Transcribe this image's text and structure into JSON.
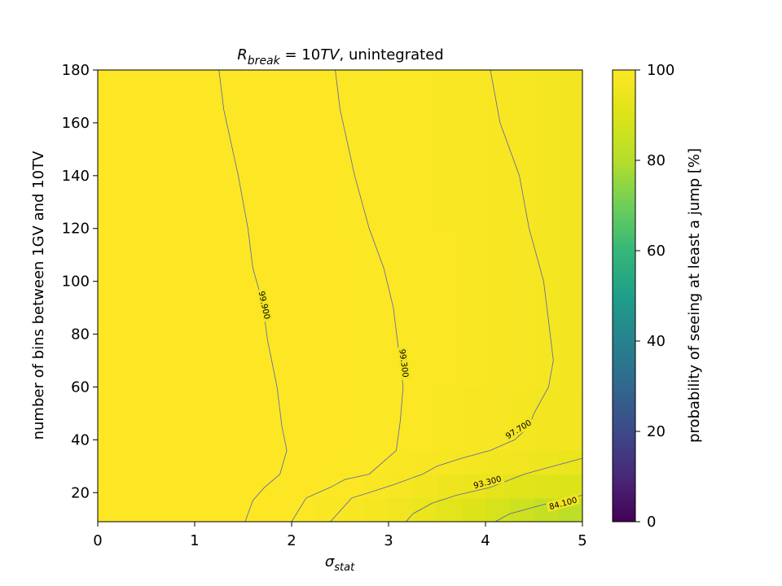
{
  "chart_data": {
    "type": "heatmap",
    "title_main": "R",
    "title_sub": "break",
    "title_eq": " = 10",
    "title_tv": "TV",
    "title_rest": ", unintegrated",
    "xlabel_main": "σ",
    "xlabel_sub": "stat",
    "ylabel": "number of bins between 1GV and 10TV",
    "colorbar_label": "probability of seeing at least a jump [%]",
    "xlim": [
      0,
      5
    ],
    "ylim": [
      9,
      180
    ],
    "clim": [
      0,
      100
    ],
    "colormap": "viridis",
    "x_ticks": [
      0,
      1,
      2,
      3,
      4,
      5
    ],
    "x_tick_labels": [
      "0",
      "1",
      "2",
      "3",
      "4",
      "5"
    ],
    "y_ticks": [
      20,
      40,
      60,
      80,
      100,
      120,
      140,
      160,
      180
    ],
    "y_tick_labels": [
      "20",
      "40",
      "60",
      "80",
      "100",
      "120",
      "140",
      "160",
      "180"
    ],
    "colorbar_ticks": [
      0,
      20,
      40,
      60,
      80,
      100
    ],
    "colorbar_tick_labels": [
      "0",
      "20",
      "40",
      "60",
      "80",
      "100"
    ],
    "grid_x_edges": [
      0,
      0.25,
      0.5,
      0.75,
      1.0,
      1.25,
      1.5,
      1.75,
      2.0,
      2.25,
      2.5,
      2.75,
      3.0,
      3.25,
      3.5,
      3.75,
      4.0,
      4.25,
      4.5,
      4.75,
      5.0
    ],
    "grid_y_edges": [
      9,
      18,
      27,
      36,
      60,
      90,
      120,
      150,
      180
    ],
    "cells": [
      [
        100,
        100,
        100,
        100,
        100,
        100,
        100,
        99.9,
        99.7,
        99.2,
        98.5,
        97.5,
        96,
        94,
        92,
        90,
        88,
        86,
        84,
        82
      ],
      [
        100,
        100,
        100,
        100,
        100,
        100,
        100,
        100,
        99.9,
        99.7,
        99.4,
        98.8,
        98,
        97,
        95.5,
        94,
        92.5,
        91.5,
        90.5,
        89.5
      ],
      [
        100,
        100,
        100,
        100,
        100,
        100,
        100,
        100,
        100,
        99.9,
        99.8,
        99.6,
        99.2,
        98.7,
        98,
        97.3,
        96.5,
        95.8,
        95,
        94.2
      ],
      [
        100,
        100,
        100,
        100,
        100,
        100,
        100,
        100,
        100,
        100,
        99.9,
        99.8,
        99.6,
        99.4,
        99.1,
        98.7,
        98.2,
        97.6,
        97,
        96.4
      ],
      [
        100,
        100,
        100,
        100,
        100,
        100,
        100,
        100,
        100,
        100,
        99.9,
        99.8,
        99.7,
        99.5,
        99.3,
        99,
        98.6,
        98.1,
        97.6,
        97
      ],
      [
        100,
        100,
        100,
        100,
        100,
        100,
        100,
        100,
        100,
        100,
        99.9,
        99.8,
        99.7,
        99.5,
        99.3,
        99,
        98.6,
        98.1,
        97.6,
        97
      ],
      [
        100,
        100,
        100,
        100,
        100,
        100,
        100,
        100,
        100,
        99.9,
        99.8,
        99.7,
        99.6,
        99.4,
        99.2,
        98.9,
        98.5,
        98,
        97.5,
        96.9
      ],
      [
        100,
        100,
        100,
        100,
        100,
        100,
        100,
        100,
        99.9,
        99.9,
        99.8,
        99.7,
        99.6,
        99.4,
        99.2,
        98.9,
        98.5,
        98,
        97.5,
        96.9
      ]
    ],
    "contours": [
      {
        "label": "99.900",
        "points": [
          [
            1.25,
            180
          ],
          [
            1.3,
            165
          ],
          [
            1.45,
            140
          ],
          [
            1.55,
            120
          ],
          [
            1.6,
            105
          ],
          [
            1.7,
            92
          ],
          [
            1.75,
            78
          ],
          [
            1.85,
            60
          ],
          [
            1.9,
            45
          ],
          [
            1.95,
            36
          ],
          [
            1.88,
            27
          ],
          [
            1.72,
            22
          ],
          [
            1.6,
            17
          ],
          [
            1.52,
            9
          ]
        ],
        "label_at": [
          1.72,
          91
        ],
        "label_angle": 78
      },
      {
        "label": "99.300",
        "points": [
          [
            2.45,
            180
          ],
          [
            2.5,
            165
          ],
          [
            2.65,
            140
          ],
          [
            2.8,
            120
          ],
          [
            2.95,
            105
          ],
          [
            3.05,
            90
          ],
          [
            3.1,
            75
          ],
          [
            3.15,
            60
          ],
          [
            3.12,
            47
          ],
          [
            3.08,
            36
          ],
          [
            2.8,
            27
          ],
          [
            2.55,
            25
          ],
          [
            2.4,
            22
          ],
          [
            2.15,
            18
          ],
          [
            2.0,
            9
          ]
        ],
        "label_at": [
          3.16,
          69
        ],
        "label_angle": 83
      },
      {
        "label": "97.700",
        "points": [
          [
            4.05,
            180
          ],
          [
            4.15,
            160
          ],
          [
            4.35,
            140
          ],
          [
            4.45,
            120
          ],
          [
            4.6,
            100
          ],
          [
            4.65,
            85
          ],
          [
            4.7,
            70
          ],
          [
            4.65,
            60
          ],
          [
            4.5,
            50
          ],
          [
            4.45,
            45
          ],
          [
            4.3,
            40
          ],
          [
            4.05,
            36
          ],
          [
            3.75,
            33
          ],
          [
            3.5,
            30
          ],
          [
            3.35,
            27
          ],
          [
            3.05,
            23
          ],
          [
            2.8,
            20
          ],
          [
            2.62,
            18
          ],
          [
            2.4,
            9
          ]
        ],
        "label_at": [
          4.34,
          44
        ],
        "label_angle": -32
      },
      {
        "label": "93.300",
        "points": [
          [
            5.0,
            33
          ],
          [
            4.7,
            30
          ],
          [
            4.4,
            27
          ],
          [
            4.05,
            22
          ],
          [
            3.7,
            19
          ],
          [
            3.45,
            16
          ],
          [
            3.25,
            12
          ],
          [
            3.18,
            9
          ]
        ],
        "label_at": [
          4.02,
          24
        ],
        "label_angle": -15
      },
      {
        "label": "84.100",
        "points": [
          [
            5.0,
            19
          ],
          [
            4.75,
            17
          ],
          [
            4.45,
            14
          ],
          [
            4.25,
            12
          ],
          [
            4.1,
            9
          ]
        ],
        "label_at": [
          4.8,
          16
        ],
        "label_angle": -15
      }
    ]
  }
}
